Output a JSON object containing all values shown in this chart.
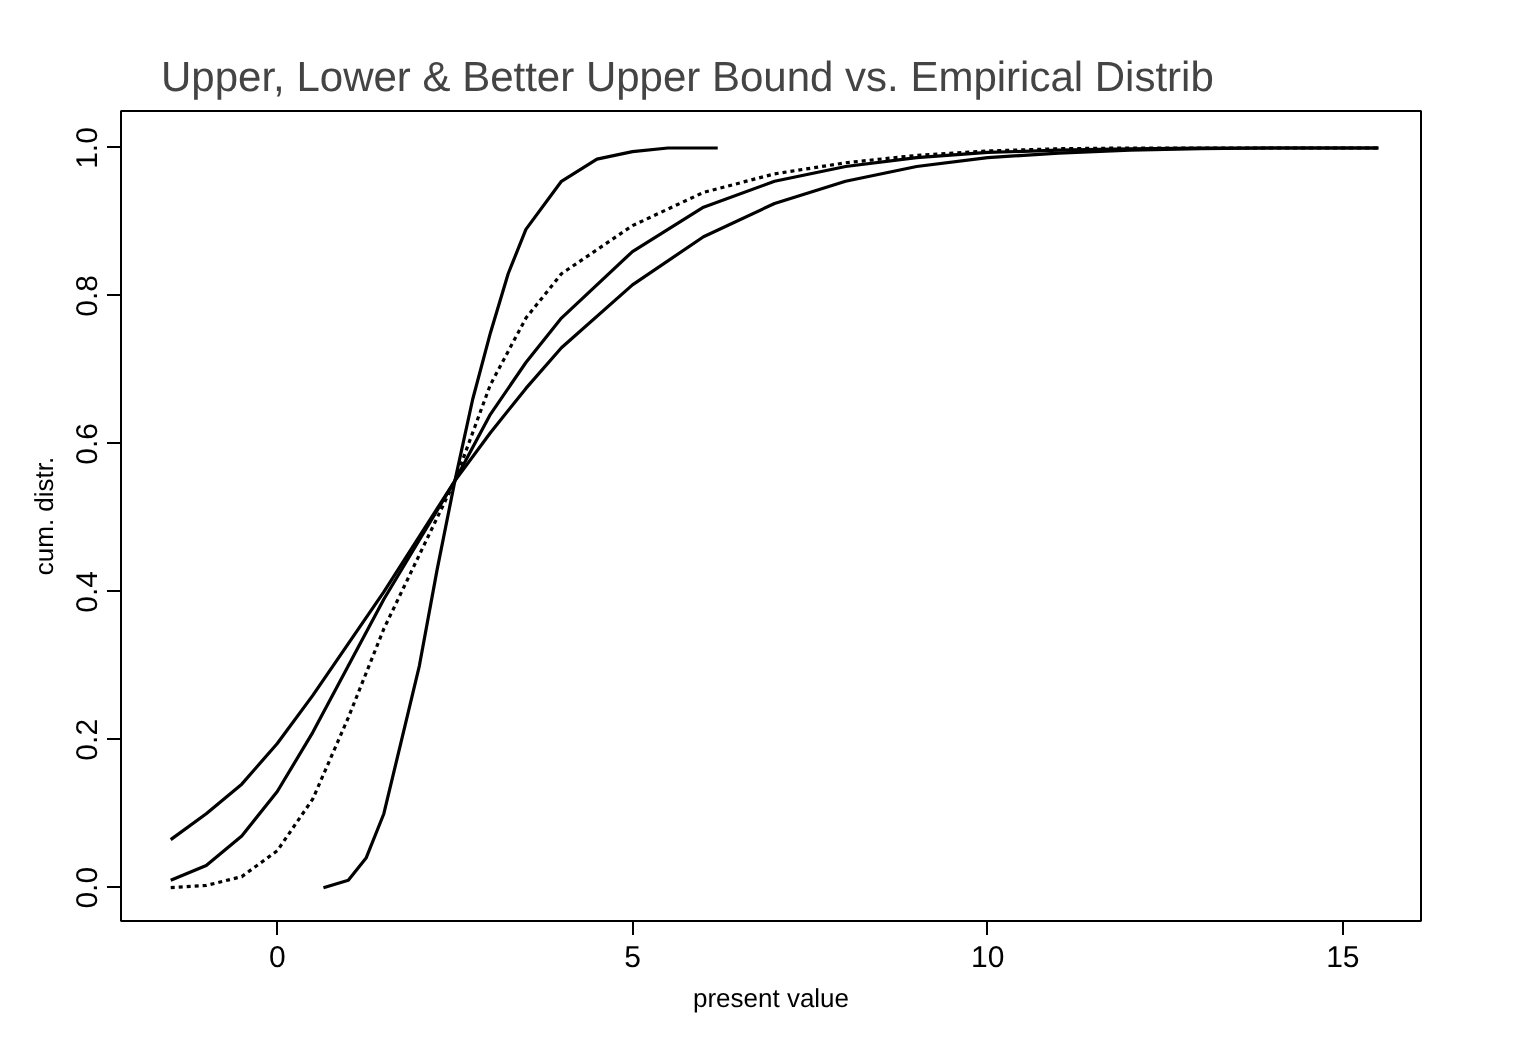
{
  "chart_data": {
    "type": "line",
    "title": "Upper, Lower & Better Upper Bound vs. Empirical Distrib",
    "xlabel": "present value",
    "ylabel": "cum. distr.",
    "xlim": [
      -2.2,
      16.1
    ],
    "ylim": [
      -0.045,
      1.05
    ],
    "xticks": [
      0,
      5,
      10,
      15
    ],
    "yticks": [
      {
        "value": 0,
        "label": "0.0"
      },
      {
        "value": 0.2,
        "label": "0.2"
      },
      {
        "value": 0.4,
        "label": "0.4"
      },
      {
        "value": 0.6,
        "label": "0.6"
      },
      {
        "value": 0.8,
        "label": "0.8"
      },
      {
        "value": 1,
        "label": "1.0"
      }
    ],
    "grid": false,
    "marker": "none",
    "series": [
      {
        "color": "#000000",
        "line_style": "solid",
        "x": [
          -1.5,
          -1,
          -0.5,
          0,
          0.5,
          1,
          1.5,
          2,
          2.5,
          3,
          3.5,
          4,
          5,
          6,
          7,
          8,
          9,
          10,
          11,
          12,
          13,
          14,
          15.5
        ],
        "values": [
          0.065,
          0.1,
          0.14,
          0.195,
          0.26,
          0.33,
          0.4,
          0.475,
          0.55,
          0.615,
          0.675,
          0.73,
          0.815,
          0.88,
          0.925,
          0.955,
          0.975,
          0.987,
          0.993,
          0.997,
          0.999,
          1.0,
          1.0
        ]
      },
      {
        "color": "#000000",
        "line_style": "solid",
        "x": [
          -1.5,
          -1,
          -0.5,
          0,
          0.5,
          1,
          1.5,
          2,
          2.5,
          3,
          3.5,
          4,
          5,
          6,
          7,
          8,
          9,
          10,
          11,
          12,
          13,
          15.5
        ],
        "values": [
          0.01,
          0.03,
          0.07,
          0.13,
          0.21,
          0.3,
          0.39,
          0.47,
          0.55,
          0.64,
          0.71,
          0.77,
          0.86,
          0.92,
          0.955,
          0.975,
          0.987,
          0.994,
          0.997,
          0.999,
          1.0,
          1.0
        ]
      },
      {
        "color": "#000000",
        "line_style": "dotted",
        "x": [
          -1.5,
          -1,
          -0.5,
          0,
          0.5,
          1,
          1.5,
          2,
          2.5,
          3,
          3.5,
          4,
          5,
          6,
          7,
          8,
          9,
          10,
          11,
          12,
          15.5
        ],
        "values": [
          0.0,
          0.003,
          0.015,
          0.05,
          0.12,
          0.23,
          0.35,
          0.45,
          0.55,
          0.68,
          0.77,
          0.83,
          0.895,
          0.94,
          0.965,
          0.98,
          0.99,
          0.996,
          0.999,
          1.0,
          1.0
        ]
      },
      {
        "color": "#000000",
        "line_style": "solid",
        "x": [
          0.65,
          1,
          1.25,
          1.5,
          1.75,
          2,
          2.25,
          2.5,
          2.75,
          3,
          3.25,
          3.5,
          4,
          4.5,
          5,
          5.5,
          6.2
        ],
        "values": [
          0.0,
          0.01,
          0.04,
          0.1,
          0.2,
          0.3,
          0.43,
          0.55,
          0.66,
          0.75,
          0.83,
          0.89,
          0.955,
          0.985,
          0.995,
          1.0,
          1.0
        ]
      }
    ]
  }
}
